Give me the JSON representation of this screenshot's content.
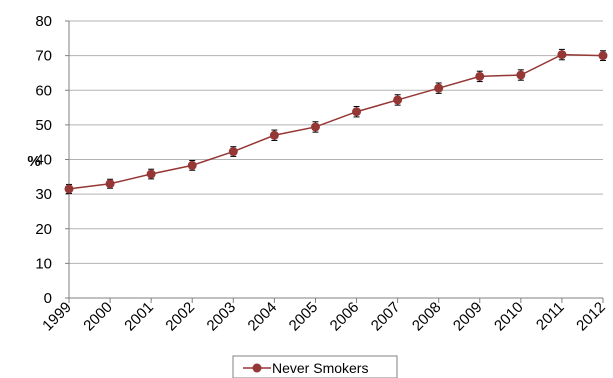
{
  "chart_data": {
    "type": "line",
    "title": "",
    "xlabel": "",
    "ylabel": "%",
    "ylim": [
      0,
      80
    ],
    "yticks": [
      0,
      10,
      20,
      30,
      40,
      50,
      60,
      70,
      80
    ],
    "grid": "horizontal",
    "legend": "bottom",
    "x": [
      "1999",
      "2000",
      "2001",
      "2002",
      "2003",
      "2004",
      "2005",
      "2006",
      "2007",
      "2008",
      "2009",
      "2010",
      "2011",
      "2012"
    ],
    "series": [
      {
        "name": "Never Smokers",
        "color": "#953735",
        "values": [
          31.5,
          33.0,
          35.8,
          38.3,
          42.3,
          47.0,
          49.4,
          53.8,
          57.2,
          60.6,
          64.0,
          64.4,
          70.3,
          70.0
        ],
        "error": [
          1.3,
          1.3,
          1.4,
          1.4,
          1.4,
          1.5,
          1.5,
          1.5,
          1.5,
          1.5,
          1.5,
          1.5,
          1.5,
          1.4
        ]
      }
    ]
  }
}
